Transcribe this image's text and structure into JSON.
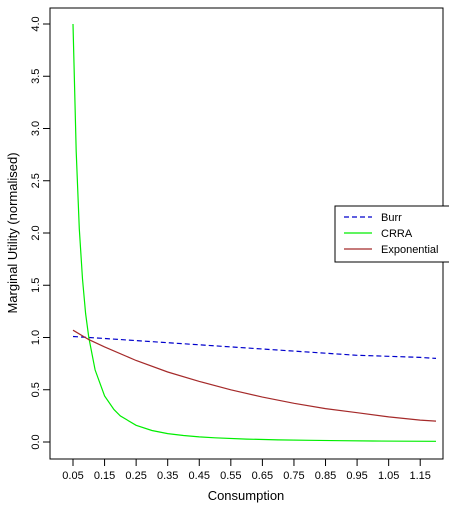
{
  "chart_data": {
    "type": "line",
    "xlabel": "Consumption",
    "ylabel": "Marginal Utility (normalised)",
    "xlim": [
      0.05,
      1.2
    ],
    "ylim": [
      0.0,
      4.0
    ],
    "x_ticks": [
      0.05,
      0.15,
      0.25,
      0.35,
      0.45,
      0.55,
      0.65,
      0.75,
      0.85,
      0.95,
      1.05,
      1.15
    ],
    "x_tick_labels": [
      "0.05",
      "0.15",
      "0.25",
      "0.35",
      "0.45",
      "0.55",
      "0.65",
      "0.75",
      "0.85",
      "0.95",
      "1.05",
      "1.15"
    ],
    "y_ticks": [
      0.0,
      0.5,
      1.0,
      1.5,
      2.0,
      2.5,
      3.0,
      3.5,
      4.0
    ],
    "y_tick_labels": [
      "0.0",
      "0.5",
      "1.0",
      "1.5",
      "2.0",
      "2.5",
      "3.0",
      "3.5",
      "4.0"
    ],
    "grid": false,
    "legend_position": "right",
    "series": [
      {
        "name": "Burr",
        "color": "#0000cc",
        "dash": "dashed",
        "x": [
          0.05,
          0.1,
          0.15,
          0.25,
          0.35,
          0.45,
          0.55,
          0.65,
          0.75,
          0.85,
          0.95,
          1.05,
          1.15,
          1.2
        ],
        "y": [
          1.01,
          1.0,
          0.99,
          0.97,
          0.95,
          0.93,
          0.91,
          0.89,
          0.87,
          0.85,
          0.83,
          0.82,
          0.81,
          0.8
        ]
      },
      {
        "name": "CRRA",
        "color": "#00ee00",
        "dash": "solid",
        "x": [
          0.05,
          0.06,
          0.07,
          0.08,
          0.09,
          0.1,
          0.12,
          0.15,
          0.18,
          0.2,
          0.25,
          0.3,
          0.35,
          0.4,
          0.45,
          0.5,
          0.6,
          0.7,
          0.8,
          0.9,
          1.0,
          1.1,
          1.2
        ],
        "y": [
          4.0,
          2.78,
          2.04,
          1.56,
          1.23,
          1.0,
          0.69,
          0.44,
          0.31,
          0.25,
          0.16,
          0.11,
          0.08,
          0.0625,
          0.049,
          0.04,
          0.028,
          0.02,
          0.016,
          0.012,
          0.01,
          0.008,
          0.007
        ]
      },
      {
        "name": "Exponential",
        "color": "#a52a2a",
        "dash": "solid",
        "x": [
          0.05,
          0.1,
          0.15,
          0.25,
          0.35,
          0.45,
          0.55,
          0.65,
          0.75,
          0.85,
          0.95,
          1.05,
          1.15,
          1.2
        ],
        "y": [
          1.07,
          0.98,
          0.91,
          0.78,
          0.67,
          0.58,
          0.5,
          0.43,
          0.37,
          0.32,
          0.28,
          0.24,
          0.21,
          0.2
        ]
      }
    ]
  }
}
